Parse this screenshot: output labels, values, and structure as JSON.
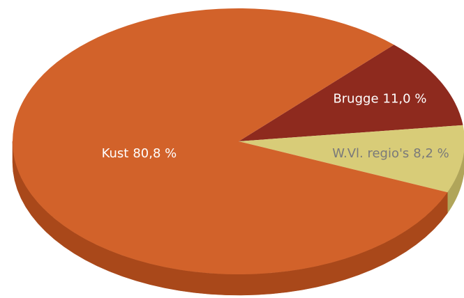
{
  "chart_data": {
    "type": "pie",
    "categories": [
      "Brugge",
      "W.Vl. regio's",
      "Kust"
    ],
    "values": [
      11.0,
      8.2,
      80.8
    ],
    "value_labels": [
      "11,0 %",
      "8,2 %",
      "80,8 %"
    ],
    "colors": [
      "#8e2a1e",
      "#d8cc78",
      "#d2622a"
    ],
    "side_colors": [
      "#6e1f15",
      "#b0a55a",
      "#a9481a"
    ],
    "label_colors": [
      "#ffffff",
      "#7a7a7a",
      "#ffffff"
    ]
  }
}
